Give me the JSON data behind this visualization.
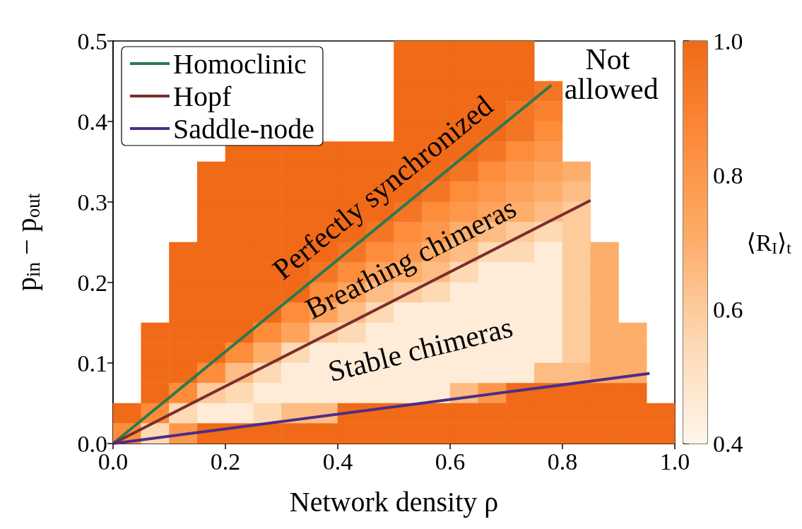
{
  "chart_data": {
    "type": "heatmap",
    "xlabel": "Network density ρ",
    "ylabel": "p$_{in}$ − p$_{out}$",
    "clabel": "⟨R$_{I}$⟩$_{t}$",
    "cells": [
      [
        null,
        null,
        null,
        null,
        null,
        null,
        null,
        null,
        null,
        null,
        1,
        1,
        1,
        1,
        1,
        null,
        null,
        null,
        null,
        null
      ],
      [
        null,
        null,
        null,
        null,
        null,
        null,
        null,
        null,
        null,
        null,
        1,
        1,
        1,
        1,
        1,
        null,
        null,
        null,
        null,
        null
      ],
      [
        null,
        null,
        null,
        null,
        null,
        null,
        null,
        null,
        null,
        null,
        1,
        1,
        1,
        1,
        1,
        0.95,
        null,
        null,
        null,
        null
      ],
      [
        null,
        null,
        null,
        null,
        null,
        null,
        null,
        null,
        null,
        null,
        1,
        1,
        1,
        1,
        0.95,
        0.9,
        null,
        null,
        null,
        null
      ],
      [
        null,
        null,
        null,
        null,
        null,
        null,
        null,
        null,
        null,
        null,
        1,
        1,
        1,
        1,
        0.95,
        0.85,
        null,
        null,
        null,
        null
      ],
      [
        null,
        null,
        null,
        null,
        1,
        1,
        1,
        1,
        1,
        1,
        1,
        1,
        1,
        0.95,
        0.85,
        0.8,
        null,
        null,
        null,
        null
      ],
      [
        null,
        null,
        null,
        1,
        1,
        1,
        1,
        1,
        1,
        1,
        1,
        1,
        0.95,
        0.85,
        0.8,
        0.75,
        0.7,
        null,
        null,
        null
      ],
      [
        null,
        null,
        null,
        1,
        1,
        1,
        1,
        1,
        1,
        1,
        1,
        0.95,
        0.85,
        0.8,
        0.75,
        0.7,
        0.65,
        null,
        null,
        null
      ],
      [
        null,
        null,
        null,
        1,
        1,
        1,
        1,
        1,
        1,
        1,
        0.95,
        0.85,
        0.8,
        0.75,
        0.7,
        0.65,
        0.6,
        null,
        null,
        null
      ],
      [
        null,
        null,
        null,
        1,
        1,
        1,
        1,
        1,
        1,
        0.95,
        0.85,
        0.8,
        0.7,
        0.65,
        0.6,
        0.55,
        0.6,
        null,
        null,
        null
      ],
      [
        null,
        null,
        1,
        1,
        1,
        1,
        1,
        1,
        0.95,
        0.85,
        0.8,
        0.7,
        0.65,
        0.55,
        0.55,
        0.45,
        0.6,
        0.7,
        null,
        null
      ],
      [
        null,
        null,
        1,
        1,
        1,
        1,
        1,
        0.95,
        0.85,
        0.75,
        0.7,
        0.65,
        0.55,
        0.45,
        0.45,
        0.45,
        0.6,
        0.7,
        null,
        null
      ],
      [
        null,
        null,
        1,
        1,
        1,
        1,
        1,
        0.85,
        0.75,
        0.65,
        0.6,
        0.55,
        0.45,
        0.45,
        0.45,
        0.45,
        0.6,
        0.7,
        null,
        null
      ],
      [
        null,
        null,
        1,
        1,
        1,
        1,
        0.85,
        0.75,
        0.65,
        0.55,
        0.45,
        0.45,
        0.45,
        0.45,
        0.45,
        0.45,
        0.6,
        0.7,
        null,
        null
      ],
      [
        null,
        1,
        1,
        1,
        1,
        0.85,
        0.75,
        0.6,
        0.55,
        0.45,
        0.45,
        0.45,
        0.45,
        0.45,
        0.45,
        0.45,
        0.6,
        0.7,
        0.7,
        null
      ],
      [
        null,
        1,
        1,
        1,
        0.85,
        0.7,
        0.55,
        0.45,
        0.45,
        0.45,
        0.45,
        0.45,
        0.45,
        0.45,
        0.45,
        0.45,
        0.6,
        0.7,
        0.7,
        null
      ],
      [
        null,
        1,
        1,
        0.85,
        0.65,
        0.55,
        0.45,
        0.45,
        0.45,
        0.45,
        0.45,
        0.45,
        0.45,
        0.45,
        0.45,
        0.65,
        0.65,
        0.7,
        0.7,
        null
      ],
      [
        null,
        1,
        0.85,
        0.6,
        0.55,
        0.45,
        0.45,
        0.45,
        0.45,
        0.45,
        0.45,
        0.45,
        0.65,
        0.8,
        1,
        1,
        1,
        1,
        1,
        null
      ],
      [
        1,
        0.85,
        0.55,
        0.45,
        0.45,
        0.55,
        0.65,
        0.65,
        1,
        1,
        1,
        1,
        1,
        1,
        1,
        1,
        1,
        1,
        1,
        1
      ],
      [
        0.85,
        0.55,
        0.8,
        1,
        1,
        1,
        1,
        1,
        1,
        1,
        1,
        1,
        1,
        1,
        1,
        1,
        1,
        1,
        1,
        1
      ]
    ],
    "clim": [
      0.4,
      1.0
    ],
    "cticks": [
      {
        "value": 0.4,
        "label": "0.4"
      },
      {
        "value": 0.6,
        "label": "0.6"
      },
      {
        "value": 0.8,
        "label": "0.8"
      },
      {
        "value": 1.0,
        "label": "1.0"
      }
    ],
    "xlim": [
      0,
      1
    ],
    "xticks": [
      {
        "value": 0,
        "label": "0.0"
      },
      {
        "value": 0.2,
        "label": "0.2"
      },
      {
        "value": 0.4,
        "label": "0.4"
      },
      {
        "value": 0.6,
        "label": "0.6"
      },
      {
        "value": 0.8,
        "label": "0.8"
      },
      {
        "value": 1,
        "label": "1.0"
      }
    ],
    "ylim": [
      0,
      0.5
    ],
    "yticks": [
      {
        "value": 0,
        "label": "0.0"
      },
      {
        "value": 0.1,
        "label": "0.1"
      },
      {
        "value": 0.2,
        "label": "0.2"
      },
      {
        "value": 0.3,
        "label": "0.3"
      },
      {
        "value": 0.4,
        "label": "0.4"
      },
      {
        "value": 0.5,
        "label": "0.5"
      }
    ],
    "series": [
      {
        "name": "Homoclinic",
        "type": "line",
        "color": "#2a7a50",
        "x": [
          0,
          0.78
        ],
        "values": [
          0,
          0.445
        ]
      },
      {
        "name": "Hopf",
        "type": "line",
        "color": "#7b2d2d",
        "x": [
          0,
          0.85
        ],
        "values": [
          0,
          0.302
        ]
      },
      {
        "name": "Saddle-node",
        "type": "line",
        "color": "#4b2d8a",
        "x": [
          0,
          0.955
        ],
        "values": [
          0,
          0.087
        ]
      }
    ],
    "legend": "top left",
    "annotations": [
      "Perfectly synchronized",
      "Breathing chimeras",
      "Stable chimeras",
      "Not allowed"
    ]
  }
}
